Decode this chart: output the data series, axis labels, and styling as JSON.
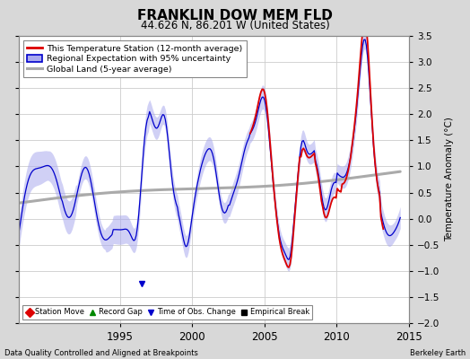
{
  "title": "FRANKLIN DOW MEM FLD",
  "subtitle": "44.626 N, 86.201 W (United States)",
  "ylabel": "Temperature Anomaly (°C)",
  "xlabel_left": "Data Quality Controlled and Aligned at Breakpoints",
  "xlabel_right": "Berkeley Earth",
  "ylim": [
    -2.0,
    3.5
  ],
  "yticks": [
    -2.0,
    -1.5,
    -1.0,
    -0.5,
    0.0,
    0.5,
    1.0,
    1.5,
    2.0,
    2.5,
    3.0,
    3.5
  ],
  "xlim": [
    1988.0,
    2014.5
  ],
  "xticks": [
    1995,
    2000,
    2005,
    2010,
    2015
  ],
  "bg_color": "#d8d8d8",
  "plot_bg_color": "#ffffff",
  "grid_color": "#cccccc",
  "station_color": "#dd0000",
  "regional_color": "#0000cc",
  "regional_fill_color": "#aaaaee",
  "global_color": "#aaaaaa",
  "title_fontsize": 11,
  "subtitle_fontsize": 8.5,
  "legend_entries": [
    "This Temperature Station (12-month average)",
    "Regional Expectation with 95% uncertainty",
    "Global Land (5-year average)"
  ],
  "marker_legend": [
    [
      "Station Move",
      "#dd0000",
      "D"
    ],
    [
      "Record Gap",
      "#008800",
      "^"
    ],
    [
      "Time of Obs. Change",
      "#0000cc",
      "v"
    ],
    [
      "Empirical Break",
      "#000000",
      "s"
    ]
  ],
  "tobs_x": 1996.5,
  "tobs_y": -1.25
}
